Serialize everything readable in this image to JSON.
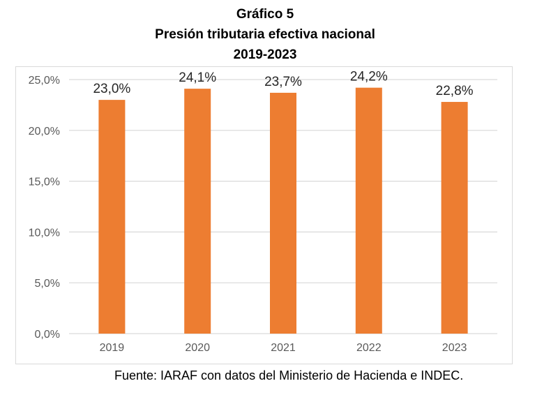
{
  "chart_title": {
    "line1": "Gráfico 5",
    "line2": "Presión tributaria efectiva nacional",
    "line3": "2019-2023"
  },
  "source_note": "Fuente: IARAF con datos del Ministerio de Hacienda e INDEC.",
  "colors": {
    "bar": "#ED7D31",
    "grid": "#d9d9d9",
    "axis_text": "#595959"
  },
  "chart_data": {
    "type": "bar",
    "title": "Presión tributaria efectiva nacional 2019-2023",
    "categories": [
      "2019",
      "2020",
      "2021",
      "2022",
      "2023"
    ],
    "values": [
      23.0,
      24.1,
      23.7,
      24.2,
      22.8
    ],
    "data_labels": [
      "23,0%",
      "24,1%",
      "23,7%",
      "24,2%",
      "22,8%"
    ],
    "ylim": [
      0,
      25
    ],
    "yticks": [
      0,
      5,
      10,
      15,
      20,
      25
    ],
    "ytick_labels": [
      "0,0%",
      "5,0%",
      "10,0%",
      "15,0%",
      "20,0%",
      "25,0%"
    ],
    "xlabel": "",
    "ylabel": "",
    "grid": true,
    "legend": "none"
  }
}
